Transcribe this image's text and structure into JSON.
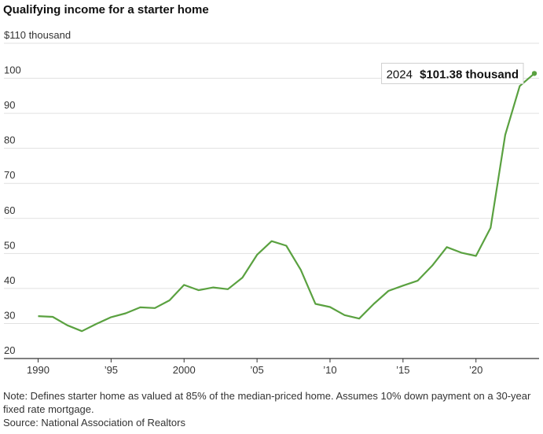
{
  "title": "Qualifying income for a starter home",
  "note": "Note: Defines starter home as valued at 85% of the median-priced home. Assumes 10% down payment on a 30-year fixed rate mortgage.",
  "source": "Source: National Association of Realtors",
  "colors": {
    "line": "#5aa140"
  },
  "chart_data": {
    "type": "line",
    "title": "Qualifying income for a starter home",
    "ylabel": "",
    "xlabel": "",
    "grid": true,
    "ylim": [
      20,
      110
    ],
    "xlim": [
      1990,
      2024
    ],
    "y_ticks": [
      20,
      30,
      40,
      50,
      60,
      70,
      80,
      90,
      100,
      110
    ],
    "y_tick_labels": [
      "20",
      "30",
      "40",
      "50",
      "60",
      "70",
      "80",
      "90",
      "100",
      "$110 thousand"
    ],
    "x_ticks": [
      1990,
      1995,
      2000,
      2005,
      2010,
      2015,
      2020
    ],
    "x_tick_labels": [
      "1990",
      "’95",
      "2000",
      "’05",
      "’10",
      "’15",
      "’20"
    ],
    "series": [
      {
        "x": [
          1990,
          1991,
          1992,
          1993,
          1994,
          1995,
          1996,
          1997,
          1998,
          1999,
          2000,
          2001,
          2002,
          2003,
          2004,
          2005,
          2006,
          2007,
          2008,
          2009,
          2010,
          2011,
          2012,
          2013,
          2014,
          2015,
          2016,
          2017,
          2018,
          2019,
          2020,
          2021,
          2022,
          2023,
          2024
        ],
        "values": [
          32.1,
          31.9,
          29.5,
          27.8,
          29.9,
          31.8,
          32.9,
          34.6,
          34.4,
          36.6,
          41.0,
          39.5,
          40.3,
          39.8,
          43.1,
          49.6,
          53.5,
          52.2,
          45.3,
          35.6,
          34.7,
          32.4,
          31.4,
          35.6,
          39.3,
          40.8,
          42.2,
          46.5,
          51.8,
          50.2,
          49.3,
          57.3,
          83.8,
          97.8,
          101.38
        ]
      }
    ],
    "annotation": {
      "year": "2024",
      "value_label": "$101.38 thousand"
    }
  }
}
